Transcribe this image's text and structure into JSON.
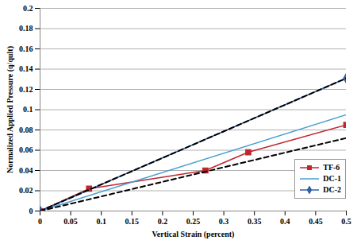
{
  "chart_data": {
    "type": "line",
    "xlabel": "Vertical Strain (percent)",
    "ylabel": "Normalized Applied Pressure (q/qult)",
    "xlim": [
      0,
      0.5
    ],
    "ylim": [
      0,
      0.2
    ],
    "xticks": [
      0,
      0.05,
      0.1,
      0.15,
      0.2,
      0.25,
      0.3,
      0.35,
      0.4,
      0.45,
      0.5
    ],
    "yticks": [
      0,
      0.02,
      0.04,
      0.06,
      0.08,
      0.1,
      0.12,
      0.14,
      0.16,
      0.18,
      0.2
    ],
    "grid": "y",
    "legend": "lower right",
    "series": [
      {
        "name": "TF-6",
        "color": "#c0262d",
        "marker": "square",
        "line_style": "solid",
        "x": [
          0,
          0.08,
          0.27,
          0.34,
          0.5
        ],
        "values": [
          0,
          0.022,
          0.04,
          0.058,
          0.085
        ]
      },
      {
        "name": "DC-1",
        "color": "#4a9fd0",
        "line_style": "solid",
        "x": [
          0,
          0.5
        ],
        "values": [
          0,
          0.095
        ]
      },
      {
        "name": "DC-2",
        "color": "#2f5fa8",
        "marker": "diamond",
        "line_style": "solid",
        "x": [
          0,
          0.5
        ],
        "values": [
          0,
          0.131
        ]
      },
      {
        "color": "#000000",
        "line_style": "dashed",
        "x": [
          0,
          0.5
        ],
        "values": [
          0,
          0.131
        ]
      },
      {
        "color": "#000000",
        "line_style": "dashed",
        "x": [
          0,
          0.5
        ],
        "values": [
          0,
          0.072
        ]
      }
    ]
  }
}
